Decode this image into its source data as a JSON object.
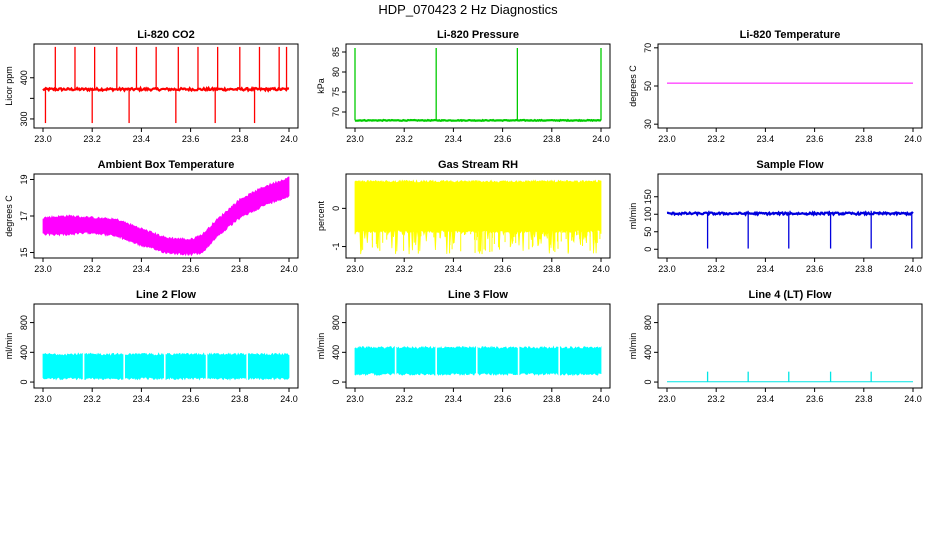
{
  "title": "HDP_070423  2 Hz Diagnostics",
  "chart_data": [
    {
      "type": "line",
      "title": "Li-820 CO2",
      "ylabel": "Licor ppm",
      "xlabel": "",
      "color": "#ff0000",
      "xlim": [
        23.0,
        24.0
      ],
      "ylim": [
        278,
        482
      ],
      "x_ticks": [
        "23.0",
        "23.2",
        "23.4",
        "23.6",
        "23.8",
        "24.0"
      ],
      "y_ticks": [
        300,
        350,
        400
      ],
      "y_tick_labels": [
        "300",
        "",
        "400"
      ],
      "baseline": 372,
      "noise": 3,
      "spikes_up": [
        23.05,
        23.13,
        23.21,
        23.3,
        23.38,
        23.46,
        23.55,
        23.63,
        23.71,
        23.8,
        23.88,
        23.96,
        23.99
      ],
      "spike_up_value": 475,
      "spikes_down": [
        23.01,
        23.2,
        23.35,
        23.54,
        23.7,
        23.86
      ],
      "spike_down_value": 290
    },
    {
      "type": "line",
      "title": "Li-820 Pressure",
      "ylabel": "kPa",
      "xlabel": "",
      "color": "#00cc00",
      "xlim": [
        23.0,
        24.0
      ],
      "ylim": [
        66,
        87
      ],
      "x_ticks": [
        "23.0",
        "23.2",
        "23.4",
        "23.6",
        "23.8",
        "24.0"
      ],
      "y_ticks": [
        70,
        75,
        80,
        85
      ],
      "y_tick_labels": [
        "70",
        "75",
        "80",
        "85"
      ],
      "baseline": 67.9,
      "noise": 0.1,
      "spikes_up": [
        23.0,
        23.33,
        23.66,
        24.0
      ],
      "spike_up_value": 86,
      "spikes_down": [],
      "spike_down_value": 67
    },
    {
      "type": "line",
      "title": "Li-820 Temperature",
      "ylabel": "degrees C",
      "xlabel": "",
      "color": "#ff00ff",
      "xlim": [
        23.0,
        24.0
      ],
      "ylim": [
        28,
        72
      ],
      "x_ticks": [
        "23.0",
        "23.2",
        "23.4",
        "23.6",
        "23.8",
        "24.0"
      ],
      "y_ticks": [
        30,
        50,
        70
      ],
      "y_tick_labels": [
        "30",
        "50",
        "70"
      ],
      "baseline": 51.5,
      "noise": 0,
      "spikes_up": [],
      "spike_up_value": 51.5,
      "spikes_down": [],
      "spike_down_value": 51.5
    },
    {
      "type": "area",
      "title": "Ambient Box Temperature",
      "ylabel": "degrees C",
      "xlabel": "",
      "color": "#ff00ff",
      "xlim": [
        23.0,
        24.0
      ],
      "ylim": [
        14.7,
        19.3
      ],
      "x_ticks": [
        "23.0",
        "23.2",
        "23.4",
        "23.6",
        "23.8",
        "24.0"
      ],
      "y_ticks": [
        15,
        17,
        19
      ],
      "y_tick_labels": [
        "15",
        "17",
        "19"
      ],
      "band_x": [
        23.0,
        23.1,
        23.2,
        23.3,
        23.4,
        23.5,
        23.6,
        23.65,
        23.7,
        23.8,
        23.9,
        24.0
      ],
      "band_low": [
        16.0,
        16.0,
        16.1,
        15.9,
        15.4,
        15.0,
        14.9,
        15.0,
        15.8,
        16.9,
        17.6,
        18.1
      ],
      "band_high": [
        16.9,
        17.0,
        16.9,
        16.8,
        16.3,
        15.8,
        15.7,
        16.0,
        16.7,
        17.9,
        18.6,
        19.1
      ]
    },
    {
      "type": "area",
      "title": "Gas Stream RH",
      "ylabel": "percent",
      "xlabel": "",
      "color": "#ffff00",
      "xlim": [
        23.0,
        24.0
      ],
      "ylim": [
        -1.3,
        0.9
      ],
      "x_ticks": [
        "23.0",
        "23.2",
        "23.4",
        "23.6",
        "23.8",
        "24.0"
      ],
      "y_ticks": [
        -1,
        0
      ],
      "y_tick_labels": [
        "-1",
        "0"
      ],
      "band_x": [
        23.0,
        24.0
      ],
      "band_low": [
        -0.6,
        -0.6
      ],
      "band_high": [
        0.7,
        0.7
      ],
      "dip_min": -1.2
    },
    {
      "type": "line",
      "title": "Sample Flow",
      "ylabel": "ml/min",
      "xlabel": "",
      "color": "#0000dd",
      "xlim": [
        23.0,
        24.0
      ],
      "ylim": [
        -25,
        215
      ],
      "x_ticks": [
        "23.0",
        "23.2",
        "23.4",
        "23.6",
        "23.8",
        "24.0"
      ],
      "y_ticks": [
        0,
        50,
        100,
        150
      ],
      "y_tick_labels": [
        "0",
        "50",
        "100",
        "150"
      ],
      "baseline": 102,
      "noise": 3,
      "spikes_up": [
        23.17,
        23.33,
        23.5,
        23.66,
        23.83
      ],
      "spike_up_value": 110,
      "spikes_down": [
        23.165,
        23.33,
        23.495,
        23.665,
        23.83,
        23.995
      ],
      "spike_down_value": 2
    },
    {
      "type": "area",
      "title": "Line 2 Flow",
      "ylabel": "ml/min",
      "xlabel": "",
      "color": "#00ffff",
      "xlim": [
        23.0,
        24.0
      ],
      "ylim": [
        -80,
        1050
      ],
      "x_ticks": [
        "23.0",
        "23.2",
        "23.4",
        "23.6",
        "23.8",
        "24.0"
      ],
      "y_ticks": [
        0,
        400,
        800
      ],
      "y_tick_labels": [
        "0",
        "400",
        "800"
      ],
      "band_x": [
        23.0,
        24.0
      ],
      "band_low": [
        50,
        50
      ],
      "band_high": [
        370,
        370
      ],
      "gaps": [
        23.165,
        23.33,
        23.495,
        23.665,
        23.83
      ]
    },
    {
      "type": "area",
      "title": "Line 3 Flow",
      "ylabel": "ml/min",
      "xlabel": "",
      "color": "#00ffff",
      "xlim": [
        23.0,
        24.0
      ],
      "ylim": [
        -80,
        1050
      ],
      "x_ticks": [
        "23.0",
        "23.2",
        "23.4",
        "23.6",
        "23.8",
        "24.0"
      ],
      "y_ticks": [
        0,
        400,
        800
      ],
      "y_tick_labels": [
        "0",
        "400",
        "800"
      ],
      "band_x": [
        23.0,
        24.0
      ],
      "band_low": [
        110,
        110
      ],
      "band_high": [
        460,
        460
      ],
      "gaps": [
        23.165,
        23.33,
        23.495,
        23.665,
        23.83
      ]
    },
    {
      "type": "line",
      "title": "Line 4 (LT) Flow",
      "ylabel": "ml/min",
      "xlabel": "",
      "color": "#00e5e5",
      "xlim": [
        23.0,
        24.0
      ],
      "ylim": [
        -80,
        1050
      ],
      "x_ticks": [
        "23.0",
        "23.2",
        "23.4",
        "23.6",
        "23.8",
        "24.0"
      ],
      "y_ticks": [
        0,
        400,
        800
      ],
      "y_tick_labels": [
        "0",
        "400",
        "800"
      ],
      "baseline": 5,
      "noise": 0,
      "spikes_up": [
        23.165,
        23.33,
        23.495,
        23.665,
        23.83
      ],
      "spike_up_value": 140,
      "spikes_down": [],
      "spike_down_value": 5
    }
  ]
}
